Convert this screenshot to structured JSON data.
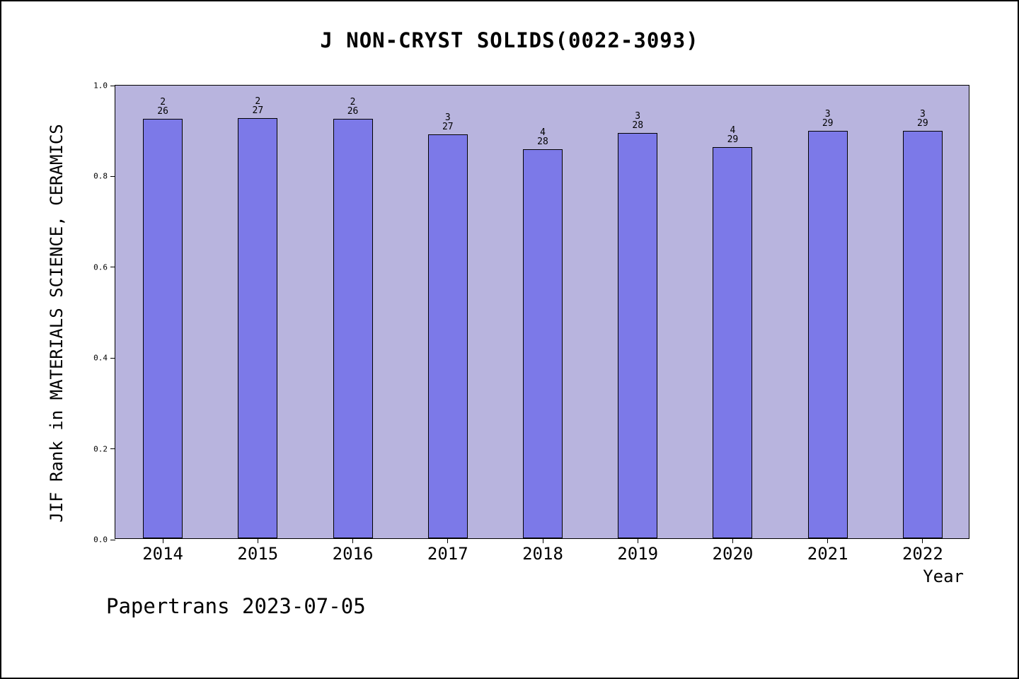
{
  "footer": "Papertrans 2023-07-05",
  "colors": {
    "plot_background": "#b8b4de",
    "bar_fill": "#7c79e8",
    "bar_border": "#000000",
    "text": "#000000"
  },
  "chart_data": {
    "type": "bar",
    "title": "J NON-CRYST SOLIDS(0022-3093)",
    "xlabel": "Year",
    "ylabel": "JIF Rank in MATERIALS SCIENCE, CERAMICS",
    "ylim": [
      0.0,
      1.0
    ],
    "ytick_labels": [
      "0.0",
      "0.2",
      "0.4",
      "0.6",
      "0.8",
      "1.0"
    ],
    "grid": false,
    "legend": false,
    "categories": [
      "2014",
      "2015",
      "2016",
      "2017",
      "2018",
      "2019",
      "2020",
      "2021",
      "2022"
    ],
    "series": [
      {
        "name": "JIF Rank",
        "values": [
          0.923,
          0.926,
          0.923,
          0.889,
          0.857,
          0.893,
          0.862,
          0.897,
          0.897
        ]
      }
    ],
    "bar_labels": [
      {
        "rank": "2",
        "total": "26"
      },
      {
        "rank": "2",
        "total": "27"
      },
      {
        "rank": "2",
        "total": "26"
      },
      {
        "rank": "3",
        "total": "27"
      },
      {
        "rank": "4",
        "total": "28"
      },
      {
        "rank": "3",
        "total": "28"
      },
      {
        "rank": "4",
        "total": "29"
      },
      {
        "rank": "3",
        "total": "29"
      },
      {
        "rank": "3",
        "total": "29"
      }
    ]
  }
}
